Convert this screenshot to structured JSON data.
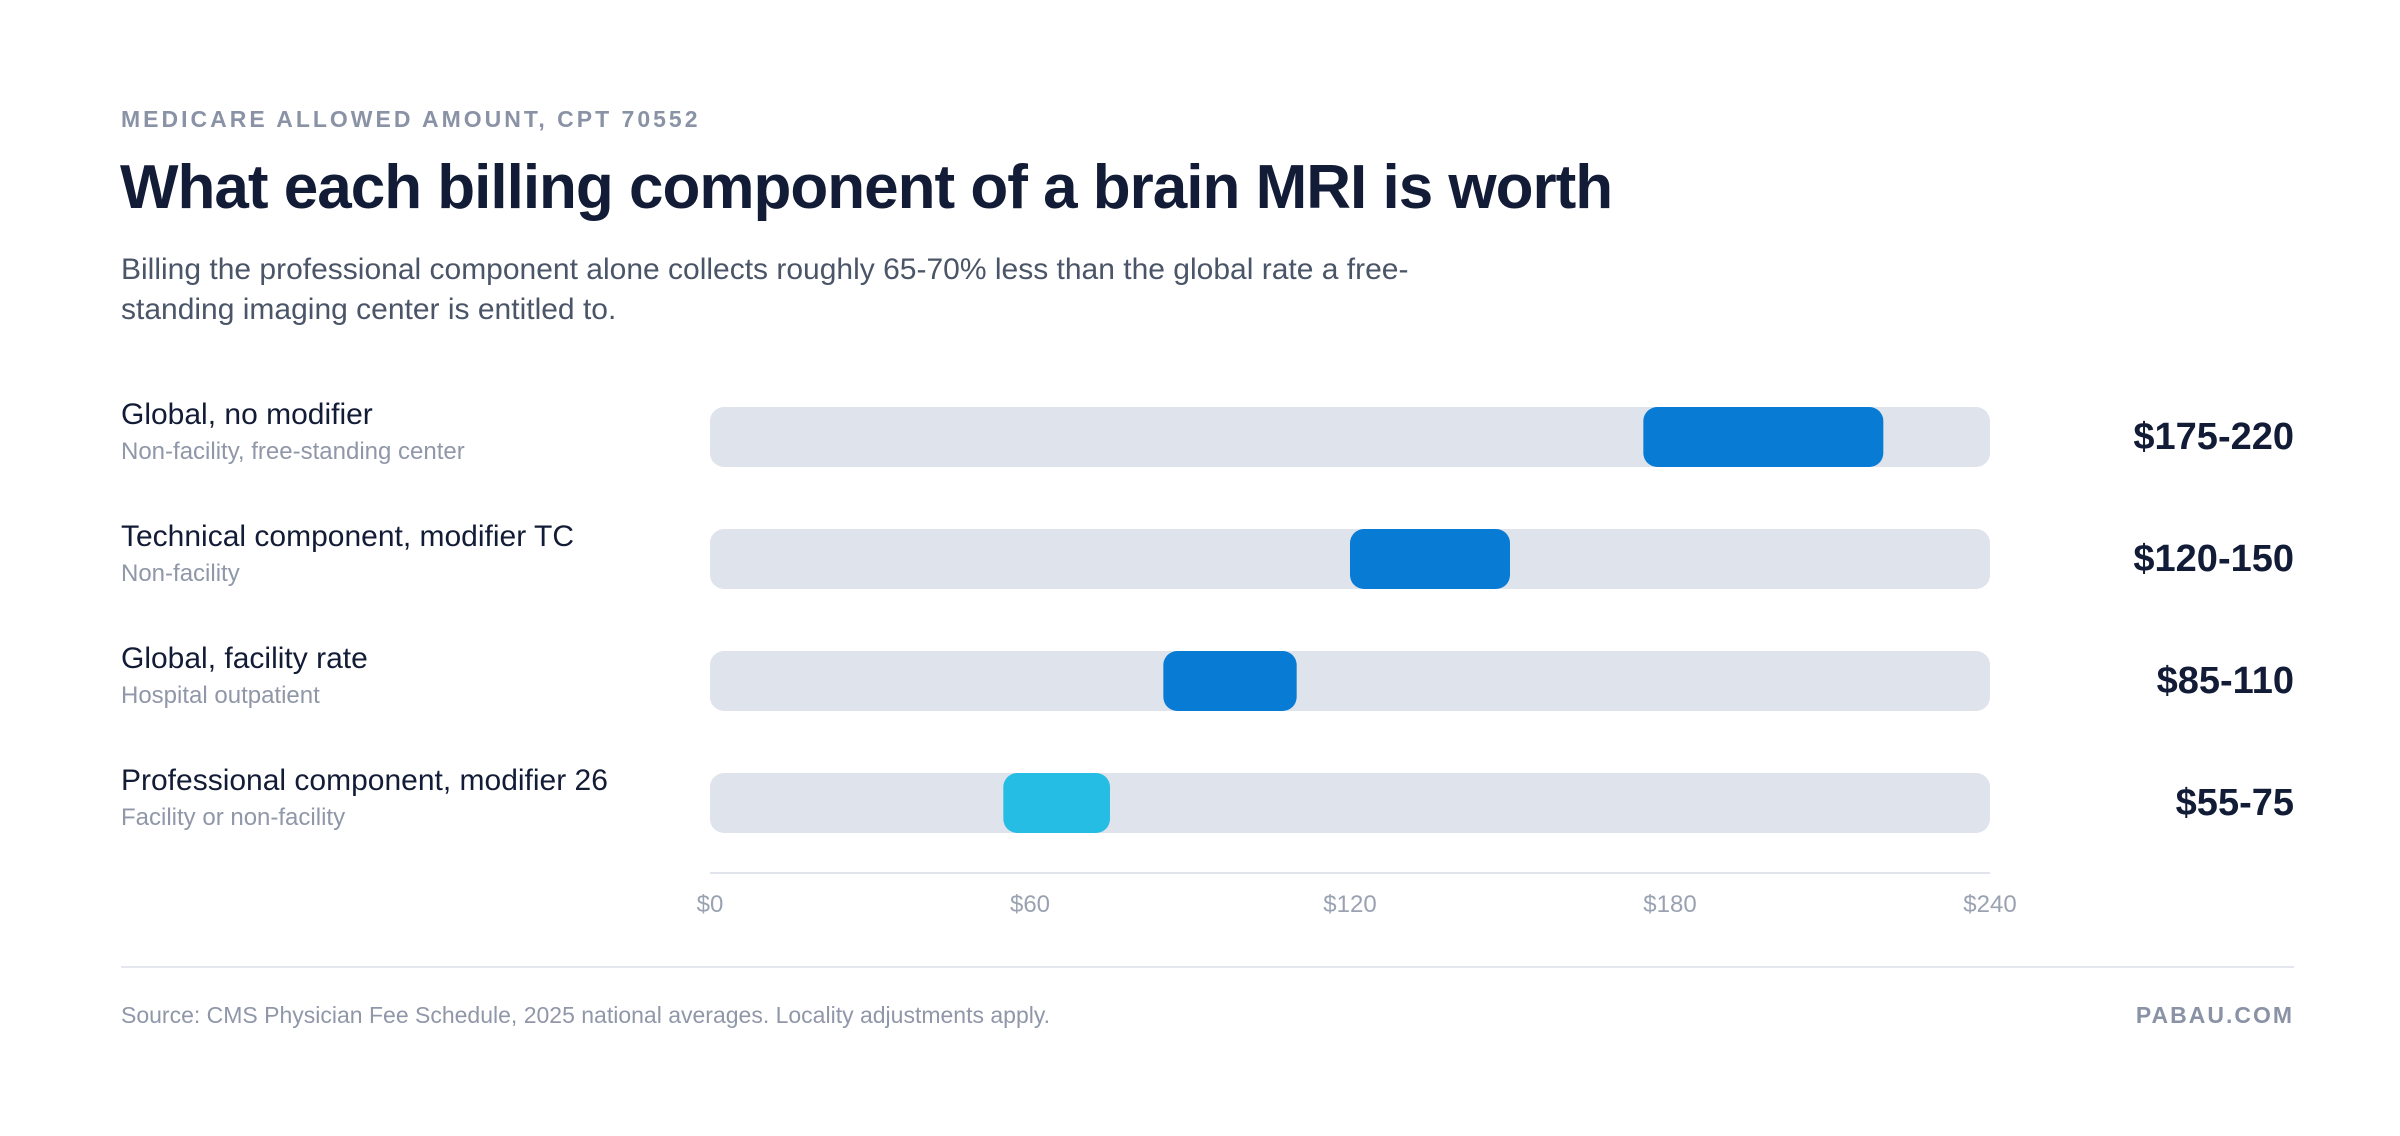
{
  "header": {
    "eyebrow": "MEDICARE ALLOWED AMOUNT, CPT 70552",
    "title": "What each billing component of a brain MRI is worth",
    "subtitle": "Billing the professional component alone collects roughly 65-70% less than the global rate a free-standing imaging center is entitled to."
  },
  "chart_data": {
    "type": "bar",
    "subtype": "range",
    "xlim": [
      0,
      240
    ],
    "ticks": [
      0,
      60,
      120,
      180,
      240
    ],
    "tick_labels": [
      "$0",
      "$60",
      "$120",
      "$180",
      "$240"
    ],
    "rows": [
      {
        "name": "Global, no modifier",
        "note": "Non-facility, free-standing center",
        "low": 175,
        "high": 220,
        "label": "$175-220",
        "color": "#087cd4"
      },
      {
        "name": "Technical component, modifier TC",
        "note": "Non-facility",
        "low": 120,
        "high": 150,
        "label": "$120-150",
        "color": "#087cd4"
      },
      {
        "name": "Global, facility rate",
        "note": "Hospital outpatient",
        "low": 85,
        "high": 110,
        "label": "$85-110",
        "color": "#087cd4"
      },
      {
        "name": "Professional component, modifier 26",
        "note": "Facility or non-facility",
        "low": 55,
        "high": 75,
        "label": "$55-75",
        "color": "#25bde3"
      }
    ],
    "track_color": "#dfe3ec"
  },
  "footer": {
    "source": "Source: CMS Physician Fee Schedule, 2025 national averages. Locality adjustments apply.",
    "brand": "PABAU.COM"
  }
}
